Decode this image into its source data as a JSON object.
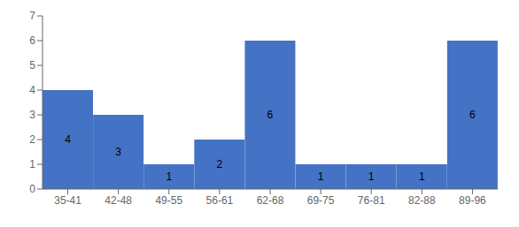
{
  "chart_data": {
    "type": "bar",
    "categories": [
      "35-41",
      "42-48",
      "49-55",
      "56-61",
      "62-68",
      "69-75",
      "76-81",
      "82-88",
      "89-96"
    ],
    "values": [
      4,
      3,
      1,
      2,
      6,
      1,
      1,
      1,
      6
    ],
    "color": "#4472C4",
    "ylim": [
      0,
      7
    ],
    "yticks": [
      0,
      1,
      2,
      3,
      4,
      5,
      6,
      7
    ],
    "grid": false,
    "data_labels": true
  }
}
